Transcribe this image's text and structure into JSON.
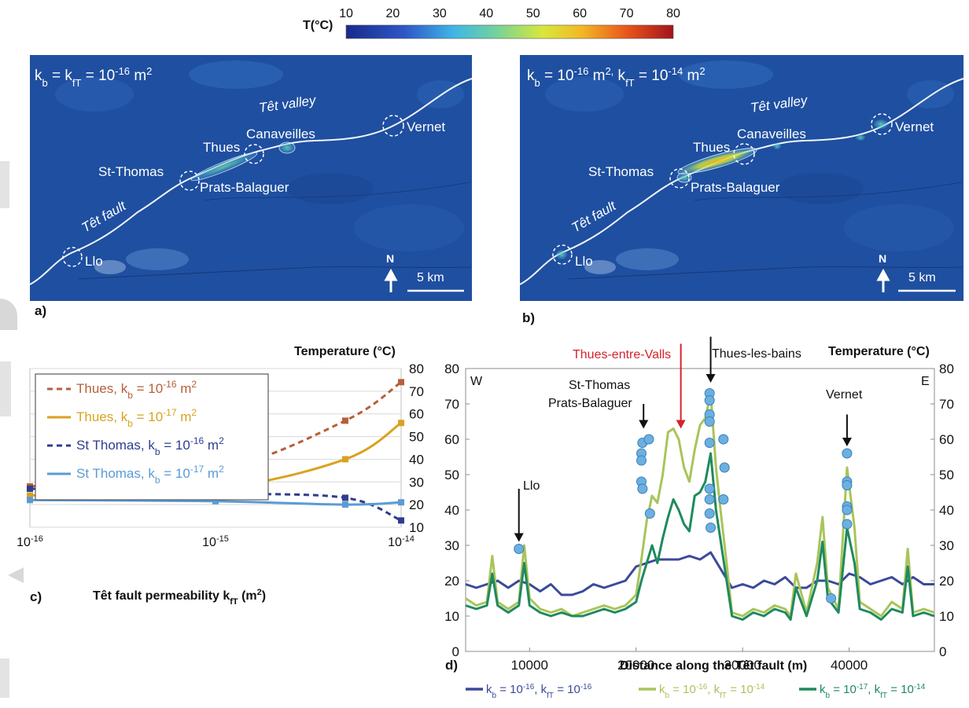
{
  "colorbar": {
    "label": "T(°C)",
    "ticks": [
      "10",
      "20",
      "30",
      "40",
      "50",
      "60",
      "70",
      "80"
    ],
    "colors": [
      "#1a2a8a",
      "#2d57c7",
      "#3fb7e6",
      "#6fd0a0",
      "#d7e83c",
      "#f3b825",
      "#e8541a",
      "#a1141c"
    ]
  },
  "panel_a": {
    "letter": "a)",
    "title": {
      "pre": "k",
      "sub1": "b",
      "eq": " = k",
      "sub2": "fT",
      "eq2": " = 10",
      "sup": "-16",
      "unit": " m",
      "sup2": "2"
    },
    "labels": {
      "tet_valley": "Têt valley",
      "tet_fault": "Têt fault",
      "canaveilles": "Canaveilles",
      "thues": "Thues",
      "st_thomas": "St-Thomas",
      "prats": "Prats-Balaguer",
      "vernet": "Vernet",
      "llo": "Llo",
      "north": "N",
      "scale": "5 km"
    },
    "colors": {
      "bg": "#1f4fa0"
    }
  },
  "panel_b": {
    "letter": "b)",
    "title": {
      "pre": "k",
      "sub1": "b",
      "eq": " = 10",
      "sup1": "-16",
      "unit1": " m",
      "sup1b": "2,",
      "pre2": " k",
      "sub2": "fT",
      "eq2": " = 10",
      "sup2": "-14",
      "unit2": " m",
      "sup2b": "2"
    },
    "labels": {
      "tet_valley": "Têt valley",
      "tet_fault": "Têt fault",
      "canaveilles": "Canaveilles",
      "thues": "Thues",
      "st_thomas": "St-Thomas",
      "prats": "Prats-Balaguer",
      "vernet": "Vernet",
      "llo": "Llo",
      "north": "N",
      "scale": "5 km"
    }
  },
  "chart_data": [
    {
      "panel": "c",
      "letter": "c)",
      "type": "line",
      "xlabel": {
        "text": "Têt fault permeability k",
        "sub": "fT",
        "unit": " (m",
        "sup": "2",
        "close": ")"
      },
      "ylabel": "Temperature (°C)",
      "x_scale": "log",
      "xlim": [
        1e-16,
        1e-14
      ],
      "ylim": [
        10,
        80
      ],
      "y_ticks": [
        10,
        20,
        30,
        40,
        50,
        60,
        70,
        80
      ],
      "x_ticks": [
        {
          "value": 1e-16,
          "base": "10",
          "exp": "-16"
        },
        {
          "value": 1e-15,
          "base": "10",
          "exp": "-15"
        },
        {
          "value": 1e-14,
          "base": "10",
          "exp": "-14"
        }
      ],
      "grid": true,
      "y_axis_side": "right",
      "legend_position": "top-left",
      "series": [
        {
          "name": "Thues, k",
          "name_sub": "b",
          "name_rest": " = 10",
          "name_sup": "-16",
          "name_unit": " m",
          "name_sup2": "2",
          "color": "#b5603a",
          "dashed": true,
          "x": [
            1e-16,
            1e-15,
            5e-15,
            1e-14
          ],
          "y": [
            28,
            35,
            57,
            74
          ]
        },
        {
          "name": "Thues, k",
          "name_sub": "b",
          "name_rest": " = 10",
          "name_sup": "-17",
          "name_unit": " m",
          "name_sup2": "2",
          "color": "#d9a21f",
          "dashed": false,
          "x": [
            1e-16,
            1e-15,
            5e-15,
            1e-14
          ],
          "y": [
            24,
            27,
            40,
            56
          ]
        },
        {
          "name": "St Thomas, k",
          "name_sub": "b",
          "name_rest": " = 10",
          "name_sup": "-16",
          "name_unit": " m",
          "name_sup2": "2",
          "color": "#2e3d8f",
          "dashed": true,
          "x": [
            1e-16,
            1e-15,
            5e-15,
            1e-14
          ],
          "y": [
            27,
            25,
            23,
            13
          ]
        },
        {
          "name": "St Thomas, k",
          "name_sub": "b",
          "name_rest": " = 10",
          "name_sup": "-17",
          "name_unit": " m",
          "name_sup2": "2",
          "color": "#5b9bd5",
          "dashed": false,
          "x": [
            1e-16,
            1e-15,
            5e-15,
            1e-14
          ],
          "y": [
            22,
            21.5,
            20,
            21
          ]
        }
      ]
    },
    {
      "panel": "d",
      "letter": "d)",
      "type": "line",
      "xlabel": "Distance along the Têt fault (m)",
      "ylabel": "Temperature (°C)",
      "xlim": [
        4000,
        48000
      ],
      "ylim": [
        0,
        80
      ],
      "x_ticks": [
        10000,
        20000,
        30000,
        40000
      ],
      "y_ticks": [
        0,
        10,
        20,
        30,
        40,
        50,
        60,
        70,
        80
      ],
      "grid": false,
      "legend_position": "bottom",
      "labels": {
        "west": "W",
        "east": "E",
        "llo": "Llo",
        "st_thomas": "St-Thomas",
        "prats": "Prats-Balaguer",
        "thues_entre": "Thues-entre-Valls",
        "thues_bains": "Thues-les-bains",
        "vernet": "Vernet"
      },
      "arrows": [
        {
          "x": 9000,
          "from": 46,
          "to": 31,
          "color": "#111111"
        },
        {
          "x": 20700,
          "from": 70,
          "to": 63,
          "color": "#111111"
        },
        {
          "x": 24200,
          "from": 87,
          "to": 63,
          "color": "#d3242a"
        },
        {
          "x": 27000,
          "from": 89,
          "to": 76,
          "color": "#111111"
        },
        {
          "x": 39800,
          "from": 67,
          "to": 58,
          "color": "#111111"
        }
      ],
      "series": [
        {
          "name": "k",
          "name_sub": "b",
          "name_rest": " = 10",
          "name_sup": "-16",
          "name_sep": ", k",
          "name_sub2": "fT",
          "name_rest2": " = 10",
          "name_sup2": "-16",
          "color": "#3a4a9a",
          "x": [
            4000,
            5000,
            6000,
            7000,
            8000,
            9000,
            10000,
            11000,
            12000,
            13000,
            14000,
            15000,
            16000,
            17000,
            18000,
            19000,
            20000,
            21000,
            22000,
            23000,
            24000,
            25000,
            26000,
            27000,
            28000,
            29000,
            30000,
            31000,
            32000,
            33000,
            34000,
            35000,
            36000,
            37000,
            38000,
            39000,
            40000,
            41000,
            42000,
            43000,
            44000,
            45000,
            46000,
            47000,
            48000
          ],
          "y": [
            19,
            18,
            19,
            20,
            18,
            20,
            19,
            17,
            19,
            16,
            16,
            17,
            19,
            18,
            19,
            20,
            24,
            25,
            26,
            26,
            26,
            27,
            26,
            28,
            23,
            18,
            19,
            18,
            20,
            19,
            21,
            18,
            18,
            20,
            20,
            19,
            22,
            21,
            19,
            20,
            21,
            19,
            21,
            19,
            19
          ]
        },
        {
          "name": "k",
          "name_sub": "b",
          "name_rest": " = 10",
          "name_sup": "-16",
          "name_sep": ", k",
          "name_sub2": "fT",
          "name_rest2": " = 10",
          "name_sup2": "-14",
          "color": "#a9c45a",
          "x": [
            4000,
            5000,
            6000,
            6500,
            7000,
            8000,
            9000,
            9500,
            10000,
            11000,
            12000,
            13000,
            14000,
            15000,
            16000,
            17000,
            18000,
            19000,
            20000,
            20500,
            21000,
            21500,
            22000,
            22500,
            23000,
            23500,
            24000,
            24500,
            25000,
            25500,
            26000,
            26500,
            27000,
            27500,
            28000,
            28500,
            29000,
            30000,
            31000,
            32000,
            33000,
            34000,
            34500,
            35000,
            36000,
            37000,
            37500,
            38000,
            39000,
            39800,
            40500,
            41000,
            42000,
            43000,
            44000,
            45000,
            45500,
            46000,
            47000,
            48000
          ],
          "y": [
            15,
            13,
            14,
            27,
            14,
            12,
            14,
            30,
            15,
            12,
            11,
            12,
            10,
            11,
            12,
            13,
            12,
            13,
            16,
            26,
            37,
            44,
            42,
            50,
            62,
            63,
            60,
            52,
            48,
            57,
            64,
            66,
            73,
            52,
            38,
            25,
            11,
            10,
            12,
            11,
            13,
            12,
            10,
            22,
            11,
            25,
            38,
            18,
            12,
            52,
            35,
            14,
            12,
            10,
            14,
            12,
            29,
            11,
            12,
            11
          ]
        },
        {
          "name": "k",
          "name_sub": "b",
          "name_rest": " = 10",
          "name_sup": "-17",
          "name_sep": ", k",
          "name_sub2": "fT",
          "name_rest2": " = 10",
          "name_sup2": "-14",
          "color": "#1e8a5e",
          "x": [
            4000,
            5000,
            6000,
            6500,
            7000,
            8000,
            9000,
            9500,
            10000,
            11000,
            12000,
            13000,
            14000,
            15000,
            16000,
            17000,
            18000,
            19000,
            20000,
            20500,
            21000,
            21500,
            22000,
            22500,
            23000,
            23500,
            24000,
            24500,
            25000,
            25500,
            26000,
            26500,
            27000,
            27500,
            28000,
            28500,
            29000,
            30000,
            31000,
            32000,
            33000,
            34000,
            34500,
            35000,
            36000,
            37000,
            37500,
            38000,
            39000,
            39800,
            40500,
            41000,
            42000,
            43000,
            44000,
            45000,
            45500,
            46000,
            47000,
            48000
          ],
          "y": [
            13,
            12,
            13,
            22,
            13,
            11,
            13,
            25,
            13,
            11,
            10,
            11,
            10,
            10,
            11,
            12,
            11,
            12,
            14,
            20,
            25,
            30,
            25,
            32,
            38,
            43,
            40,
            36,
            34,
            44,
            45,
            48,
            56,
            40,
            30,
            20,
            10,
            9,
            11,
            10,
            12,
            11,
            9,
            18,
            10,
            20,
            31,
            15,
            11,
            35,
            25,
            12,
            11,
            9,
            12,
            11,
            24,
            10,
            11,
            10
          ]
        }
      ],
      "measurements": {
        "name": "measured",
        "color": "#6bb0e0",
        "x": [
          9000,
          20500,
          20500,
          20500,
          20600,
          20600,
          21300,
          21200,
          26900,
          26900,
          26900,
          26900,
          26900,
          26900,
          26900,
          26900,
          27000,
          28200,
          28300,
          28200,
          38300,
          39800,
          39800,
          39800,
          39800,
          39800,
          39800
        ],
        "y": [
          29,
          56,
          54,
          48,
          46,
          59,
          39,
          60,
          73,
          71,
          67,
          65,
          59,
          46,
          43,
          39,
          35,
          60,
          52,
          43,
          15,
          56,
          48,
          47,
          41,
          40,
          36
        ]
      }
    }
  ]
}
